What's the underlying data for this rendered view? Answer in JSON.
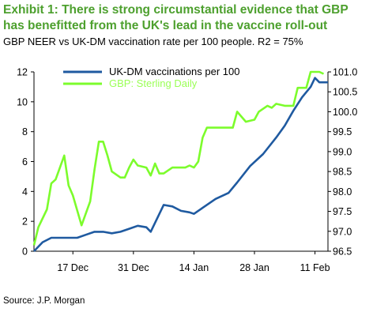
{
  "title": "Exhibit 1: There is strong circumstantial evidence that GBP has benefitted from the UK's lead in the vaccine roll-out",
  "subtitle": "GBP NEER vs UK-DM vaccination rate per 100 people. R2 = 75%",
  "source": "Source: J.P. Morgan",
  "chart_data": {
    "type": "line",
    "x_tick_labels": [
      "17 Dec",
      "31 Dec",
      "14 Jan",
      "28 Jan",
      "11 Feb"
    ],
    "x_ticks_dates": [
      "2020-12-17",
      "2020-12-31",
      "2021-01-14",
      "2021-01-28",
      "2021-02-11"
    ],
    "x_range": [
      "2020-12-08",
      "2021-02-14"
    ],
    "y_left": {
      "range": [
        0,
        12
      ],
      "ticks": [
        "0",
        "2",
        "4",
        "6",
        "8",
        "10",
        "12"
      ]
    },
    "y_right": {
      "range": [
        96.5,
        101.0
      ],
      "ticks": [
        "96.5",
        "97.0",
        "97.5",
        "98.0",
        "98.5",
        "99.0",
        "99.5",
        "100.0",
        "100.5",
        "101.0"
      ]
    },
    "legend_position": "top-left",
    "grid": false,
    "series": [
      {
        "name": "UK-DM vaccinations per 100",
        "axis": "left",
        "color": "#1f5aa0",
        "points": [
          [
            "2020-12-08",
            0.0
          ],
          [
            "2020-12-10",
            0.6
          ],
          [
            "2020-12-12",
            0.9
          ],
          [
            "2020-12-15",
            0.9
          ],
          [
            "2020-12-18",
            0.9
          ],
          [
            "2020-12-20",
            1.1
          ],
          [
            "2020-12-22",
            1.3
          ],
          [
            "2020-12-24",
            1.3
          ],
          [
            "2020-12-26",
            1.2
          ],
          [
            "2020-12-28",
            1.3
          ],
          [
            "2020-12-30",
            1.5
          ],
          [
            "2021-01-01",
            1.7
          ],
          [
            "2021-01-03",
            1.6
          ],
          [
            "2021-01-04",
            1.3
          ],
          [
            "2021-01-07",
            3.1
          ],
          [
            "2021-01-09",
            3.0
          ],
          [
            "2021-01-11",
            2.7
          ],
          [
            "2021-01-13",
            2.6
          ],
          [
            "2021-01-14",
            2.5
          ],
          [
            "2021-01-16",
            2.9
          ],
          [
            "2021-01-19",
            3.5
          ],
          [
            "2021-01-22",
            3.9
          ],
          [
            "2021-01-24",
            4.6
          ],
          [
            "2021-01-27",
            5.7
          ],
          [
            "2021-01-30",
            6.5
          ],
          [
            "2021-02-02",
            7.6
          ],
          [
            "2021-02-04",
            8.4
          ],
          [
            "2021-02-06",
            9.4
          ],
          [
            "2021-02-08",
            10.3
          ],
          [
            "2021-02-10",
            11.0
          ],
          [
            "2021-02-11",
            11.6
          ],
          [
            "2021-02-12",
            11.3
          ],
          [
            "2021-02-14",
            11.3
          ]
        ]
      },
      {
        "name": "GBP: Sterling Daily",
        "axis": "right",
        "color": "#7cfc2c",
        "points": [
          [
            "2020-12-08",
            96.65
          ],
          [
            "2020-12-09",
            97.1
          ],
          [
            "2020-12-11",
            97.55
          ],
          [
            "2020-12-12",
            98.2
          ],
          [
            "2020-12-13",
            98.3
          ],
          [
            "2020-12-15",
            98.9
          ],
          [
            "2020-12-16",
            98.15
          ],
          [
            "2020-12-17",
            97.9
          ],
          [
            "2020-12-19",
            97.15
          ],
          [
            "2020-12-21",
            97.75
          ],
          [
            "2020-12-22",
            98.55
          ],
          [
            "2020-12-23",
            99.25
          ],
          [
            "2020-12-24",
            99.25
          ],
          [
            "2020-12-25",
            98.9
          ],
          [
            "2020-12-26",
            98.5
          ],
          [
            "2020-12-28",
            98.35
          ],
          [
            "2020-12-29",
            98.35
          ],
          [
            "2020-12-30",
            98.6
          ],
          [
            "2020-12-31",
            98.8
          ],
          [
            "2021-01-01",
            98.65
          ],
          [
            "2021-01-03",
            98.6
          ],
          [
            "2021-01-04",
            98.4
          ],
          [
            "2021-01-05",
            98.7
          ],
          [
            "2021-01-06",
            98.45
          ],
          [
            "2021-01-07",
            98.45
          ],
          [
            "2021-01-09",
            98.6
          ],
          [
            "2021-01-11",
            98.6
          ],
          [
            "2021-01-12",
            98.6
          ],
          [
            "2021-01-13",
            98.65
          ],
          [
            "2021-01-14",
            98.6
          ],
          [
            "2021-01-15",
            98.75
          ],
          [
            "2021-01-16",
            99.35
          ],
          [
            "2021-01-17",
            99.6
          ],
          [
            "2021-01-18",
            99.6
          ],
          [
            "2021-01-19",
            99.6
          ],
          [
            "2021-01-21",
            99.6
          ],
          [
            "2021-01-23",
            99.6
          ],
          [
            "2021-01-24",
            100.0
          ],
          [
            "2021-01-26",
            99.75
          ],
          [
            "2021-01-28",
            99.8
          ],
          [
            "2021-01-29",
            100.0
          ],
          [
            "2021-01-31",
            100.15
          ],
          [
            "2021-02-01",
            100.1
          ],
          [
            "2021-02-02",
            100.2
          ],
          [
            "2021-02-04",
            100.15
          ],
          [
            "2021-02-05",
            100.15
          ],
          [
            "2021-02-06",
            100.15
          ],
          [
            "2021-02-07",
            100.6
          ],
          [
            "2021-02-08",
            100.6
          ],
          [
            "2021-02-09",
            100.6
          ],
          [
            "2021-02-10",
            101.0
          ],
          [
            "2021-02-12",
            101.0
          ],
          [
            "2021-02-13",
            100.95
          ]
        ]
      }
    ]
  }
}
